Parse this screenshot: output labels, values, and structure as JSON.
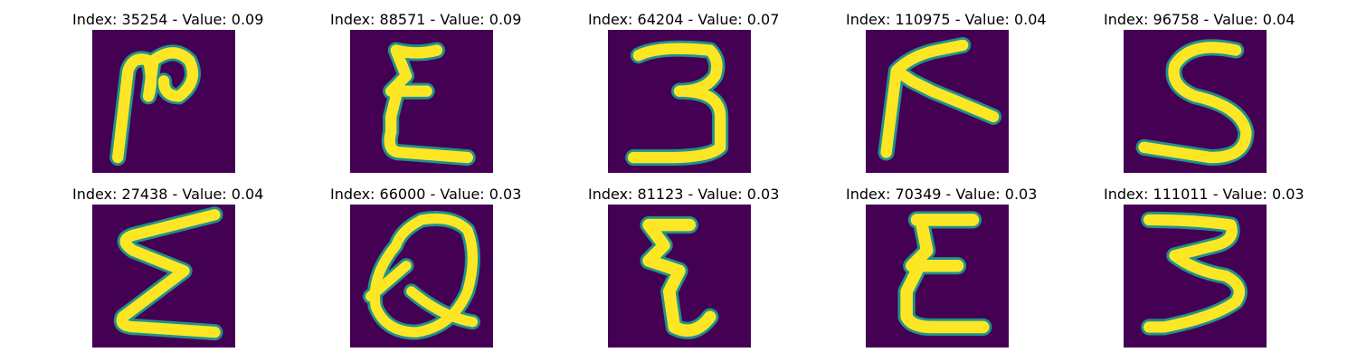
{
  "panels": [
    {
      "title": "Index: 35254 - Value: 0.09"
    },
    {
      "title": "Index: 88571 - Value: 0.09"
    },
    {
      "title": "Index: 64204 - Value: 0.07"
    },
    {
      "title": "Index: 110975 - Value: 0.04"
    },
    {
      "title": "Index: 96758 - Value: 0.04"
    },
    {
      "title": "Index: 27438 - Value: 0.04"
    },
    {
      "title": "Index: 66000 - Value: 0.03"
    },
    {
      "title": "Index: 81123 - Value: 0.03"
    },
    {
      "title": "Index: 70349 - Value: 0.03"
    },
    {
      "title": "Index: 111011 - Value: 0.03"
    }
  ],
  "colors": {
    "background": "#440154",
    "stroke_edge": "#21918c",
    "stroke_core": "#fde725"
  }
}
